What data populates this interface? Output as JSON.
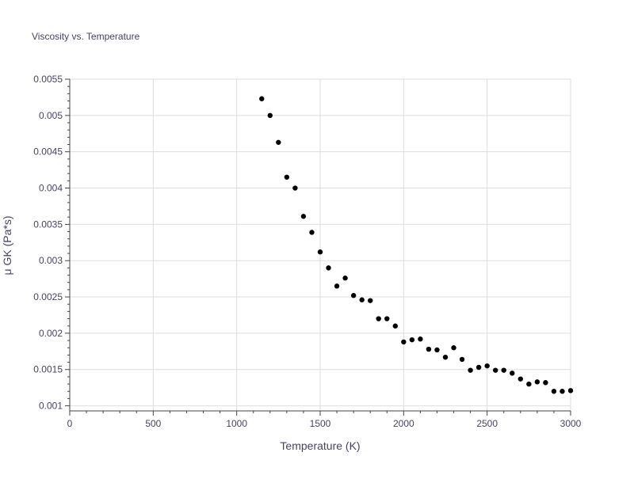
{
  "chart_data": {
    "type": "scatter",
    "title": "Viscosity vs. Temperature",
    "xlabel": "Temperature (K)",
    "ylabel": "μ GK (Pa*s)",
    "xlim": [
      0,
      3000
    ],
    "ylim": [
      0.00093,
      0.0055
    ],
    "x_ticks": [
      0,
      500,
      1000,
      1500,
      2000,
      2500,
      3000
    ],
    "x_tick_labels": [
      "0",
      "500",
      "1000",
      "1500",
      "2000",
      "2500",
      "3000"
    ],
    "y_ticks": [
      0.001,
      0.0015,
      0.002,
      0.0025,
      0.003,
      0.0035,
      0.004,
      0.0045,
      0.005,
      0.0055
    ],
    "y_tick_labels": [
      "0.001",
      "0.0015",
      "0.002",
      "0.0025",
      "0.003",
      "0.0035",
      "0.004",
      "0.0045",
      "0.005",
      "0.0055"
    ],
    "grid": true,
    "marker_color": "#000000",
    "grid_color": "#dddddd",
    "text_color": "#444466",
    "series": [
      {
        "x": [
          1150,
          1200,
          1250,
          1300,
          1350,
          1400,
          1450,
          1500,
          1550,
          1600,
          1650,
          1700,
          1750,
          1800,
          1850,
          1900,
          1950,
          2000,
          2050,
          2100,
          2150,
          2200,
          2250,
          2300,
          2350,
          2400,
          2450,
          2500,
          2550,
          2600,
          2650,
          2700,
          2750,
          2800,
          2850,
          2900,
          2950,
          3000
        ],
        "y": [
          0.00523,
          0.005,
          0.00463,
          0.00415,
          0.004,
          0.00361,
          0.00339,
          0.00312,
          0.0029,
          0.00265,
          0.00276,
          0.00252,
          0.00246,
          0.00245,
          0.0022,
          0.0022,
          0.0021,
          0.00188,
          0.00191,
          0.00192,
          0.00178,
          0.00177,
          0.00167,
          0.0018,
          0.00164,
          0.00149,
          0.00153,
          0.00155,
          0.00149,
          0.00149,
          0.00145,
          0.00137,
          0.0013,
          0.00133,
          0.00132,
          0.0012,
          0.0012,
          0.00121
        ]
      }
    ]
  }
}
